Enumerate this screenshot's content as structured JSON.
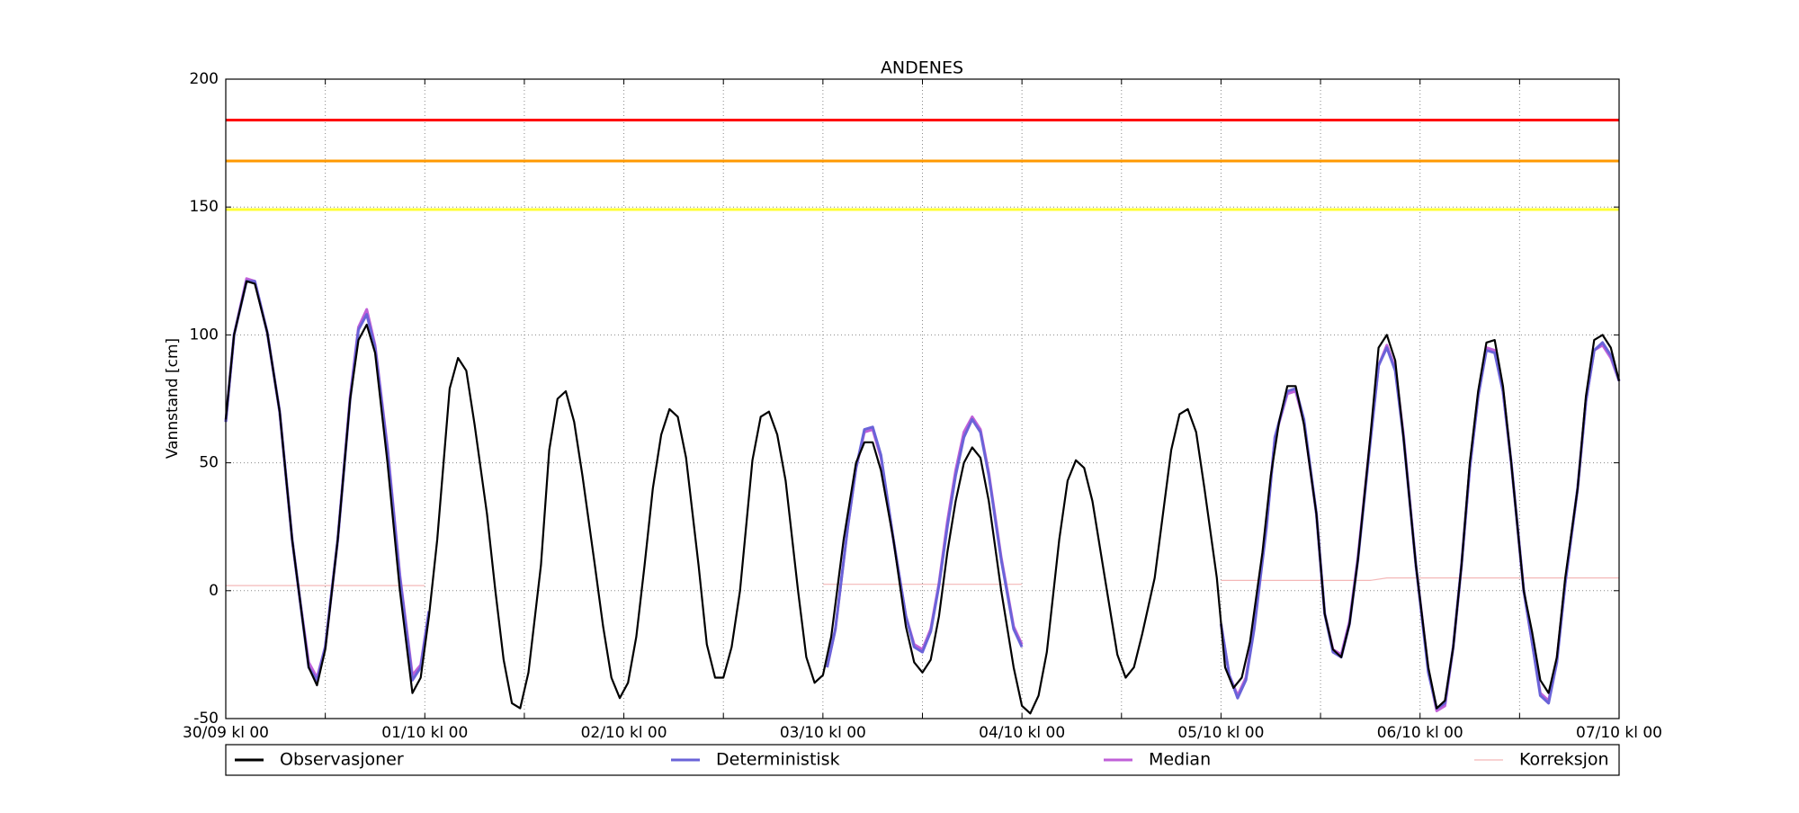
{
  "chart_data": {
    "type": "line",
    "title": "ANDENES",
    "y_label": "Vannstand [cm]",
    "xlim": [
      0,
      168
    ],
    "xticks": [
      {
        "value": 0,
        "label": "30/09 kl 00"
      },
      {
        "value": 24,
        "label": "01/10 kl 00"
      },
      {
        "value": 48,
        "label": "02/10 kl 00"
      },
      {
        "value": 72,
        "label": "03/10 kl 00"
      },
      {
        "value": 96,
        "label": "04/10 kl 00"
      },
      {
        "value": 120,
        "label": "05/10 kl 00"
      },
      {
        "value": 144,
        "label": "06/10 kl 00"
      },
      {
        "value": 168,
        "label": "07/10 kl 00"
      }
    ],
    "xminor_ticks": [
      12,
      36,
      60,
      84,
      108,
      132,
      156
    ],
    "ylim": [
      -50,
      200
    ],
    "yticks": [
      -50,
      0,
      50,
      100,
      150,
      200
    ],
    "grid": true,
    "thresholds": [
      {
        "value": 184,
        "color": "#ff0000"
      },
      {
        "value": 168,
        "color": "#ff9900"
      },
      {
        "value": 149,
        "color": "#ffff33"
      }
    ],
    "series": [
      {
        "name": "Korreksjon",
        "color": "#f4b8b8",
        "x": [
          0,
          24,
          null,
          72,
          96,
          null,
          120,
          138,
          140,
          168
        ],
        "values": [
          2,
          2,
          null,
          2.5,
          2.5,
          null,
          4,
          4,
          5,
          5
        ]
      },
      {
        "name": "Median",
        "color": "#c060d8",
        "x": [
          0,
          1,
          2.5,
          3.5,
          5,
          6.5,
          8,
          9,
          10,
          11,
          12,
          13.5,
          15,
          16,
          17,
          18,
          19.5,
          21,
          22.5,
          23.5,
          24.5,
          null,
          72.5,
          73.5,
          75,
          76,
          77,
          78,
          79,
          80.5,
          82,
          83,
          84,
          85,
          86,
          87,
          88,
          89,
          90,
          91,
          92,
          93.5,
          95,
          96,
          null,
          120,
          121,
          122,
          123,
          124,
          125.5,
          126.5,
          128,
          129,
          130,
          131.5,
          132.5,
          133.5,
          134.5,
          135.5,
          136.5,
          138,
          139,
          140,
          141,
          142,
          143.5,
          145,
          146,
          147,
          148,
          149,
          150,
          151,
          152,
          153,
          154,
          155,
          156.5,
          157.5,
          158.5,
          159.5,
          160.5,
          161.5,
          163,
          164,
          165,
          166,
          167,
          168
        ],
        "values": [
          66,
          100,
          122,
          121,
          101,
          70,
          20,
          -5,
          -28,
          -34,
          -22,
          20,
          76,
          103,
          110,
          96,
          56,
          6,
          -33,
          -29,
          -8,
          null,
          -30,
          -15,
          25,
          48,
          62,
          63,
          52,
          20,
          -10,
          -21,
          -23,
          -15,
          3,
          27,
          47,
          62,
          68,
          63,
          46,
          13,
          -14,
          -21,
          null,
          -13,
          -33,
          -41,
          -34,
          -14,
          26,
          60,
          77,
          78,
          66,
          30,
          -9,
          -23,
          -25,
          -12,
          13,
          59,
          88,
          96,
          87,
          61,
          10,
          -31,
          -47,
          -45,
          -22,
          10,
          48,
          76,
          95,
          94,
          78,
          50,
          0,
          -20,
          -40,
          -43,
          -27,
          3,
          40,
          74,
          94,
          96,
          91,
          82
        ]
      },
      {
        "name": "Deterministisk",
        "color": "#6a63d8",
        "x": [
          0,
          1,
          2.5,
          3.5,
          5,
          6.5,
          8,
          9,
          10,
          11,
          12,
          13.5,
          15,
          16,
          17,
          18,
          19.5,
          21,
          22.5,
          23.5,
          24.5,
          null,
          72.5,
          73.5,
          75,
          76,
          77,
          78,
          79,
          80.5,
          82,
          83,
          84,
          85,
          86,
          87,
          88,
          89,
          90,
          91,
          92,
          93.5,
          95,
          96,
          null,
          120,
          121,
          122,
          123,
          124,
          125.5,
          126.5,
          128,
          129,
          130,
          131.5,
          132.5,
          133.5,
          134.5,
          135.5,
          136.5,
          138,
          139,
          140,
          141,
          142,
          143.5,
          145,
          146,
          147,
          148,
          149,
          150,
          151,
          152,
          153,
          154,
          155,
          156.5,
          157.5,
          158.5,
          159.5,
          160.5,
          161.5,
          163,
          164,
          165,
          166,
          167,
          168
        ],
        "values": [
          66,
          100,
          121,
          121,
          101,
          70,
          20,
          -5,
          -30,
          -35,
          -22,
          20,
          75,
          102,
          108,
          95,
          55,
          5,
          -35,
          -30,
          -8,
          null,
          -30,
          -15,
          25,
          48,
          63,
          64,
          53,
          20,
          -10,
          -22,
          -24,
          -16,
          2,
          25,
          45,
          60,
          67,
          62,
          45,
          12,
          -15,
          -22,
          null,
          -13,
          -33,
          -42,
          -35,
          -15,
          25,
          60,
          78,
          79,
          67,
          30,
          -9,
          -24,
          -26,
          -13,
          12,
          58,
          88,
          95,
          86,
          60,
          10,
          -32,
          -46,
          -44,
          -22,
          10,
          48,
          76,
          94,
          93,
          78,
          50,
          0,
          -20,
          -41,
          -44,
          -28,
          3,
          40,
          74,
          94,
          97,
          92,
          82
        ]
      },
      {
        "name": "Observasjoner",
        "color": "#000000",
        "x": [
          0,
          1,
          2.5,
          3.5,
          5,
          6.5,
          8,
          9,
          10,
          11,
          12,
          13.5,
          15,
          16,
          17,
          18,
          19.5,
          21,
          22.5,
          23.5,
          24.5,
          25.5,
          27,
          28,
          29,
          30,
          31.5,
          32.5,
          33.5,
          34.5,
          35.5,
          36.5,
          38,
          39,
          40,
          41,
          42,
          43,
          44.5,
          45.5,
          46.5,
          47.5,
          48.5,
          49.5,
          50.5,
          51.5,
          52.5,
          53.5,
          54.5,
          55.5,
          57,
          58,
          59,
          60,
          61,
          62,
          63.5,
          64.5,
          65.5,
          66.5,
          67.5,
          69,
          70,
          71,
          72,
          73,
          74.5,
          76,
          77,
          78,
          79,
          80.5,
          82,
          83,
          84,
          85,
          86,
          87,
          88,
          89,
          90,
          91,
          92,
          93.5,
          95,
          96,
          97,
          98,
          99,
          100.5,
          101.5,
          102.5,
          103.5,
          104.5,
          106,
          107.5,
          108.5,
          109.5,
          110.5,
          112,
          113,
          114,
          115,
          116,
          117,
          118,
          119.5,
          120.5,
          121.5,
          122.5,
          123.5,
          125,
          126,
          127,
          128,
          129,
          130,
          131.5,
          132.5,
          133.5,
          134.5,
          135.5,
          136.5,
          138,
          139,
          140,
          141,
          142,
          143.5,
          145,
          146,
          147,
          148,
          149,
          150,
          151,
          152,
          153,
          154,
          155,
          156.5,
          157.5,
          158.5,
          159.5,
          160.5,
          161.5,
          163,
          164,
          165,
          166,
          167,
          168
        ],
        "values": [
          67,
          100,
          121,
          120,
          101,
          70,
          20,
          -5,
          -30,
          -37,
          -23,
          20,
          75,
          98,
          104,
          93,
          50,
          0,
          -40,
          -34,
          -10,
          20,
          79,
          91,
          86,
          65,
          30,
          0,
          -27,
          -44,
          -46,
          -32,
          10,
          55,
          75,
          78,
          66,
          45,
          10,
          -14,
          -34,
          -42,
          -36,
          -18,
          10,
          40,
          61,
          71,
          68,
          52,
          10,
          -21,
          -34,
          -34,
          -22,
          0,
          51,
          68,
          70,
          61,
          43,
          0,
          -26,
          -36,
          -33,
          -18,
          20,
          50,
          58,
          58,
          47,
          20,
          -14,
          -28,
          -32,
          -27,
          -10,
          15,
          35,
          50,
          56,
          52,
          35,
          0,
          -30,
          -45,
          -48,
          -41,
          -24,
          20,
          43,
          51,
          48,
          35,
          5,
          -25,
          -34,
          -30,
          -17,
          5,
          30,
          55,
          69,
          71,
          62,
          40,
          5,
          -30,
          -38,
          -34,
          -20,
          15,
          45,
          66,
          80,
          80,
          65,
          30,
          -9,
          -23,
          -26,
          -13,
          12,
          60,
          95,
          100,
          90,
          60,
          10,
          -30,
          -46,
          -43,
          -22,
          10,
          50,
          78,
          97,
          98,
          80,
          50,
          0,
          -16,
          -35,
          -40,
          -26,
          5,
          40,
          76,
          98,
          100,
          95,
          82
        ]
      }
    ],
    "legend_order": [
      3,
      2,
      1,
      0
    ]
  }
}
